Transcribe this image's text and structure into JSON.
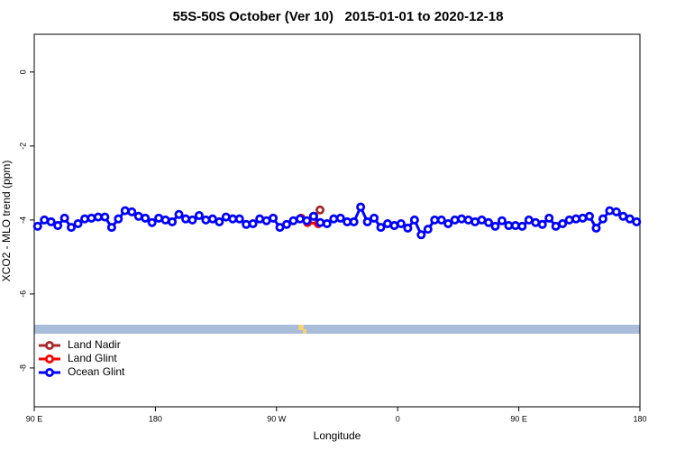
{
  "chart_data": {
    "type": "line",
    "title": "55S-50S October (Ver 10)   2015-01-01 to 2020-12-18",
    "x_label": "Longitude",
    "y_label": "XCO2 - MLO trend (ppm)",
    "xlim": [
      90,
      540
    ],
    "xticks": [
      {
        "value": 90,
        "label": "90 E"
      },
      180,
      {
        "value": 270,
        "label": "90 W"
      },
      {
        "value": 360,
        "label": "0"
      },
      {
        "value": 450,
        "label": "90 E"
      },
      {
        "value": 540,
        "label": "180"
      }
    ],
    "ylim": [
      -9.05,
      1.02
    ],
    "yticks": [
      0,
      -2,
      -4,
      -6,
      -8
    ],
    "legend": "bottom-left",
    "series": [
      {
        "name": "Land Nadir",
        "color": "#a52a2a",
        "x": [
          297.6,
          302.3
        ],
        "values": [
          -3.9,
          -3.73
        ]
      },
      {
        "name": "Land Glint",
        "color": "#ff0000",
        "x": [
          288.2,
          293,
          301
        ],
        "values": [
          -3.95,
          -4.07,
          -4.1
        ]
      },
      {
        "name": "Ocean Glint",
        "color": "#0000ff",
        "x": [
          92.5,
          97.5,
          102.5,
          107.5,
          112.5,
          117.5,
          122.5,
          127.5,
          132.5,
          137.5,
          142.5,
          147.5,
          152.5,
          157.5,
          162.5,
          167.5,
          172.5,
          177.5,
          182.5,
          187.5,
          192.5,
          197.5,
          202.5,
          207.5,
          212.5,
          217.5,
          222.5,
          227.5,
          232.5,
          237.5,
          242.5,
          247.5,
          252.5,
          257.5,
          262.5,
          267.5,
          272.5,
          277.5,
          282.5,
          287.5,
          292.5,
          297.5,
          302.5,
          307.5,
          312.5,
          317.5,
          322.5,
          327.5,
          332.5,
          337.5,
          342.5,
          347.5,
          352.5,
          357.5,
          362.5,
          367.5,
          372.5,
          377.5,
          382.5,
          387.5,
          392.5,
          397.5,
          402.5,
          407.5,
          412.5,
          417.5,
          422.5,
          427.5,
          432.5,
          437.5,
          442.5,
          447.5,
          452.5,
          457.5,
          462.5,
          467.5,
          472.5,
          477.5,
          482.5,
          487.5,
          492.5,
          497.5,
          502.5,
          507.5,
          512.5,
          517.5,
          522.5,
          527.5,
          532.5,
          537.5
        ],
        "values": [
          -4.17,
          -4.0,
          -4.05,
          -4.15,
          -3.95,
          -4.2,
          -4.1,
          -3.97,
          -3.95,
          -3.92,
          -3.92,
          -4.2,
          -3.97,
          -3.75,
          -3.78,
          -3.9,
          -3.95,
          -4.07,
          -3.95,
          -4.0,
          -4.05,
          -3.85,
          -3.97,
          -4.0,
          -3.88,
          -4.0,
          -3.97,
          -4.05,
          -3.92,
          -3.97,
          -3.97,
          -4.12,
          -4.1,
          -3.97,
          -4.02,
          -3.95,
          -4.2,
          -4.12,
          -4.02,
          -3.97,
          -4.02,
          -3.9,
          -4.07,
          -4.1,
          -3.97,
          -3.95,
          -4.05,
          -4.05,
          -3.65,
          -4.05,
          -3.95,
          -4.2,
          -4.1,
          -4.15,
          -4.1,
          -4.22,
          -4.0,
          -4.4,
          -4.25,
          -4.0,
          -4.0,
          -4.1,
          -4.0,
          -3.97,
          -4.0,
          -4.05,
          -4.0,
          -4.07,
          -4.17,
          -4.02,
          -4.15,
          -4.15,
          -4.17,
          -4.0,
          -4.07,
          -4.12,
          -3.95,
          -4.17,
          -4.1,
          -4.0,
          -3.97,
          -3.95,
          -3.9,
          -4.22,
          -3.97,
          -3.75,
          -3.78,
          -3.9,
          -3.97,
          -4.05
        ]
      }
    ]
  }
}
